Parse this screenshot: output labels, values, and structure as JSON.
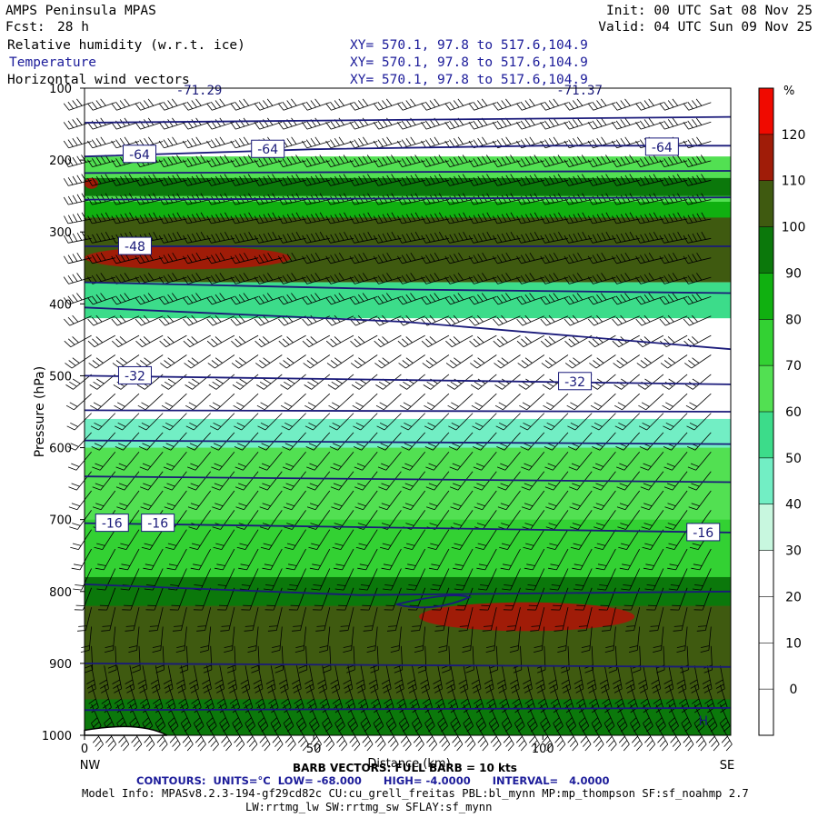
{
  "header": {
    "left_title": "AMPS Peninsula MPAS",
    "fcst_label": "Fcst:",
    "fcst_value": "28 h",
    "init": "Init: 00 UTC Sat 08 Nov 25",
    "valid": "Valid: 04 UTC Sun 09 Nov 25",
    "fields": [
      {
        "name": "Relative humidity (w.r.t. ice)",
        "xy": "XY= 570.1, 97.8 to 517.6,104.9"
      },
      {
        "name": "Temperature",
        "xy": "XY= 570.1, 97.8 to 517.6,104.9"
      },
      {
        "name": "Horizontal wind vectors",
        "xy": "XY= 570.1, 97.8 to 517.6,104.9"
      }
    ]
  },
  "chart_data": {
    "type": "cross-section",
    "xlabel": "Distance (km)",
    "ylabel": "Pressure (hPa)",
    "xlim": [
      0,
      141
    ],
    "ylim": [
      1000,
      100
    ],
    "x_ticks": [
      0,
      50,
      100
    ],
    "y_ticks": [
      100,
      200,
      300,
      400,
      500,
      600,
      700,
      800,
      900,
      1000
    ],
    "x_end_labels": {
      "left": "NW",
      "right": "SE"
    },
    "top_annotations": [
      {
        "text": "-71.29",
        "x": 25
      },
      {
        "text": "-71.37",
        "x": 108
      }
    ],
    "colorbar": {
      "unit": "%",
      "levels": [
        0,
        10,
        20,
        30,
        40,
        50,
        60,
        70,
        80,
        90,
        100,
        110,
        120
      ],
      "colors": [
        "#ffffff",
        "#ffffff",
        "#ffffff",
        "#ffffff",
        "#c8f7df",
        "#72eec4",
        "#3cdc8a",
        "#52e052",
        "#33d133",
        "#10b010",
        "#0b780b",
        "#3f5a10",
        "#a01c08",
        "#f00a00"
      ]
    },
    "rh_layers": [
      {
        "p_top": 195,
        "p_bot": 260,
        "rh": 65
      },
      {
        "p_top": 225,
        "p_bot": 250,
        "rh": 90
      },
      {
        "p_top": 258,
        "p_bot": 300,
        "rh": 85
      },
      {
        "p_top": 280,
        "p_bot": 370,
        "rh": 105
      },
      {
        "p_top": 370,
        "p_bot": 420,
        "rh": 55
      },
      {
        "p_top": 560,
        "p_bot": 660,
        "rh": 45
      },
      {
        "p_top": 600,
        "p_bot": 760,
        "rh": 60
      },
      {
        "p_top": 700,
        "p_bot": 1000,
        "rh": 75
      },
      {
        "p_top": 780,
        "p_bot": 1000,
        "rh": 90
      },
      {
        "p_top": 820,
        "p_bot": 950,
        "rh": 105
      }
    ],
    "rh_patches": [
      {
        "x0": 0,
        "x1": 45,
        "p_top": 320,
        "p_bot": 352,
        "rh": 115
      },
      {
        "x0": 73,
        "x1": 120,
        "p_top": 815,
        "p_bot": 855,
        "rh": 115
      },
      {
        "x0": 0,
        "x1": 3,
        "p_top": 225,
        "p_bot": 240,
        "rh": 115
      }
    ],
    "temperature_contours": [
      {
        "value": -64,
        "points": [
          [
            0,
            195
          ],
          [
            50,
            185
          ],
          [
            100,
            180
          ],
          [
            141,
            180
          ]
        ]
      },
      {
        "value": -60,
        "points": [
          [
            0,
            148
          ],
          [
            141,
            140
          ]
        ]
      },
      {
        "value": -56,
        "points": [
          [
            0,
            218
          ],
          [
            141,
            215
          ]
        ]
      },
      {
        "value": -52,
        "points": [
          [
            0,
            255
          ],
          [
            141,
            252
          ]
        ]
      },
      {
        "value": -48,
        "points": [
          [
            0,
            320
          ],
          [
            141,
            320
          ]
        ]
      },
      {
        "value": -44,
        "points": [
          [
            0,
            370
          ],
          [
            70,
            380
          ],
          [
            141,
            385
          ]
        ]
      },
      {
        "value": -40,
        "points": [
          [
            0,
            405
          ],
          [
            70,
            425
          ],
          [
            141,
            463
          ]
        ]
      },
      {
        "value": -32,
        "points": [
          [
            0,
            500
          ],
          [
            141,
            512
          ]
        ]
      },
      {
        "value": -28,
        "points": [
          [
            0,
            548
          ],
          [
            141,
            550
          ]
        ]
      },
      {
        "value": -24,
        "points": [
          [
            0,
            590
          ],
          [
            141,
            595
          ]
        ]
      },
      {
        "value": -20,
        "points": [
          [
            0,
            640
          ],
          [
            141,
            648
          ]
        ]
      },
      {
        "value": -16,
        "points": [
          [
            0,
            705
          ],
          [
            141,
            718
          ]
        ]
      },
      {
        "value": -12,
        "points": [
          [
            0,
            790
          ],
          [
            60,
            805
          ],
          [
            141,
            800
          ]
        ]
      },
      {
        "value": -8,
        "points": [
          [
            0,
            900
          ],
          [
            141,
            905
          ]
        ]
      },
      {
        "value": -4,
        "points": [
          [
            0,
            965
          ],
          [
            141,
            962
          ]
        ]
      }
    ],
    "contour_labels": [
      {
        "text": "-64",
        "x": 12,
        "p": 192
      },
      {
        "text": "-64",
        "x": 40,
        "p": 185
      },
      {
        "text": "-64",
        "x": 126,
        "p": 182
      },
      {
        "text": "-48",
        "x": 11,
        "p": 320
      },
      {
        "text": "-32",
        "x": 11,
        "p": 500
      },
      {
        "text": "-32",
        "x": 107,
        "p": 508
      },
      {
        "text": "-16",
        "x": 6,
        "p": 705
      },
      {
        "text": "-16",
        "x": 16,
        "p": 705
      },
      {
        "text": "-16",
        "x": 135,
        "p": 718
      }
    ],
    "wind_layers": [
      {
        "p": 100,
        "dir": 250,
        "kts": 40
      },
      {
        "p": 200,
        "dir": 255,
        "kts": 45
      },
      {
        "p": 300,
        "dir": 260,
        "kts": 50
      },
      {
        "p": 400,
        "dir": 250,
        "kts": 35
      },
      {
        "p": 500,
        "dir": 230,
        "kts": 25
      },
      {
        "p": 600,
        "dir": 220,
        "kts": 20
      },
      {
        "p": 700,
        "dir": 215,
        "kts": 15
      },
      {
        "p": 800,
        "dir": 200,
        "kts": 15
      },
      {
        "p": 900,
        "dir": 170,
        "kts": 25
      },
      {
        "p": 980,
        "dir": 150,
        "kts": 30
      }
    ],
    "marker": {
      "text": "H",
      "x": 135,
      "p": 980
    }
  },
  "footer": {
    "barb_line": "BARB VECTORS: FULL BARB = 10 kts",
    "contours_line": "CONTOURS:  UNITS=°C  LOW= -68.000      HIGH= -4.0000      INTERVAL=   4.0000",
    "model_info": "Model Info: MPASv8.2.3-194-gf29cd82c CU:cu_grell_freitas PBL:bl_mynn MP:mp_thompson SF:sf_noahmp 2.7",
    "model_info2": "LW:rrtmg_lw SW:rrtmg_sw SFLAY:sf_mynn"
  }
}
